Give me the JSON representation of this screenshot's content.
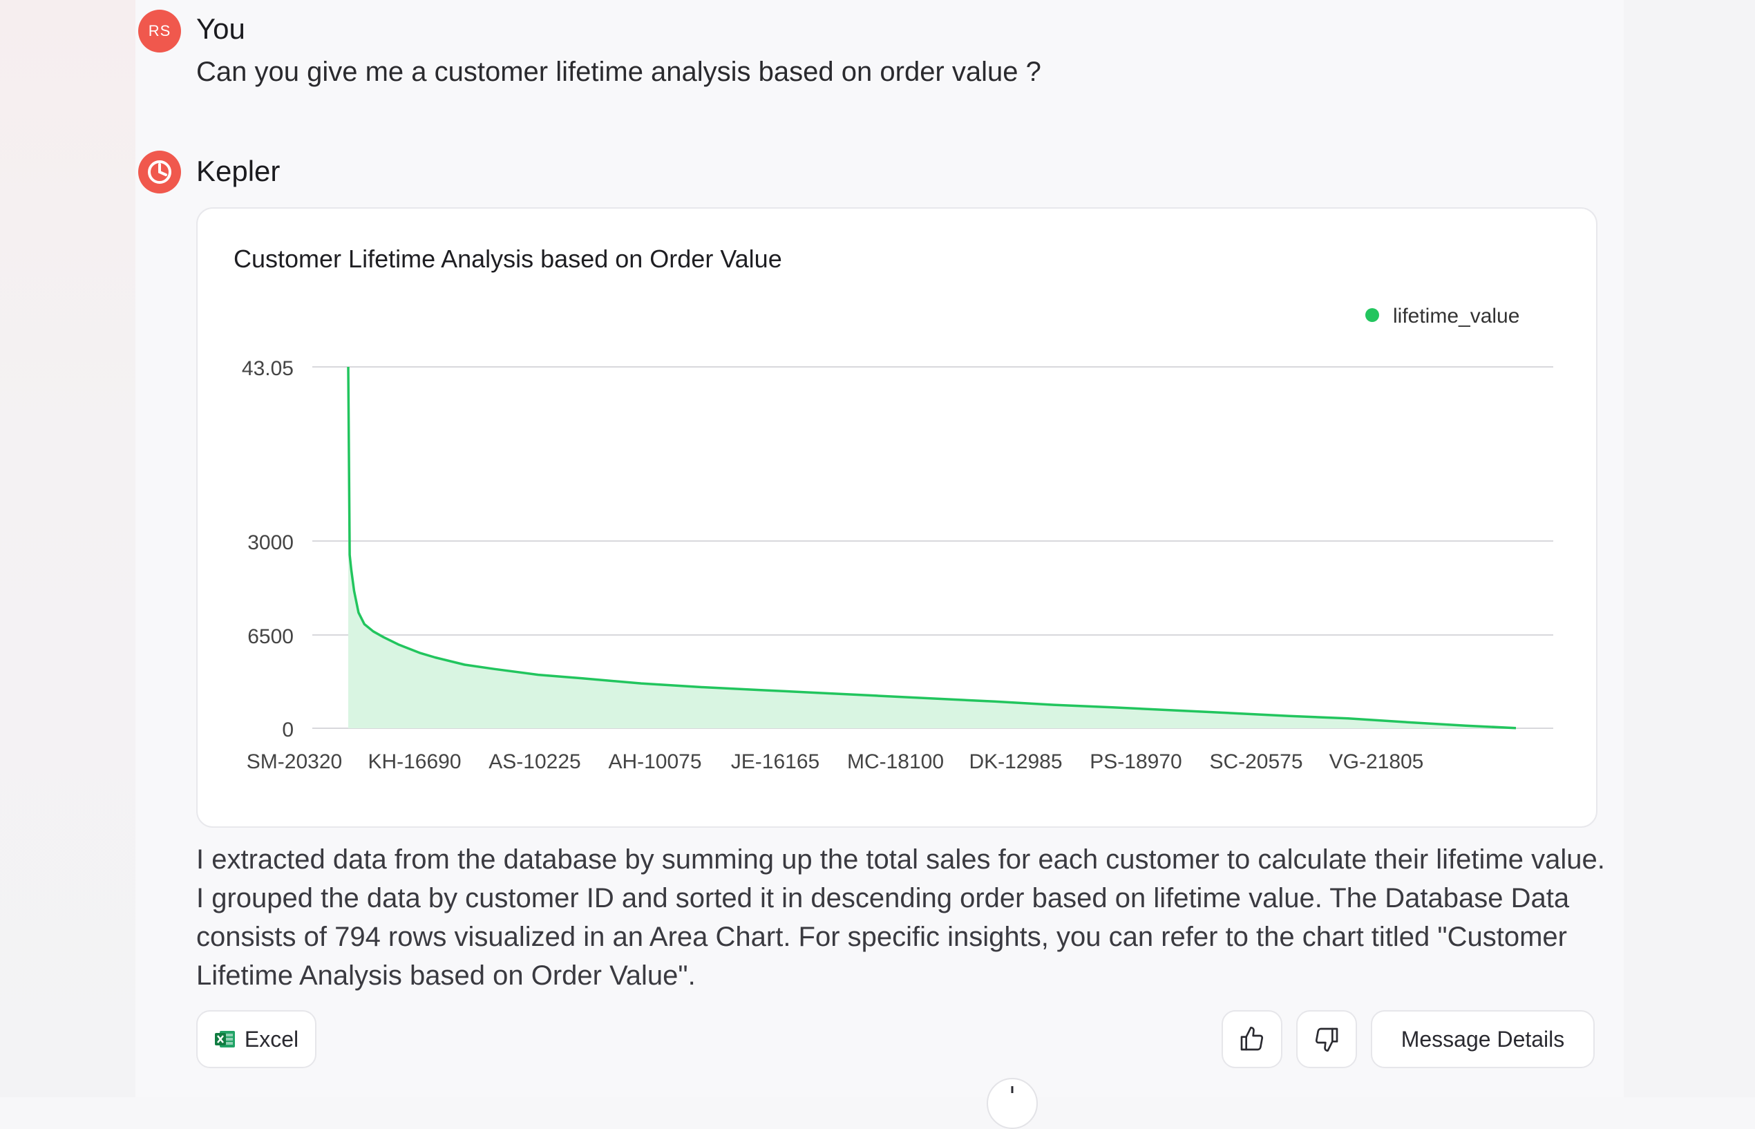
{
  "conversation": {
    "user": {
      "initials": "RS",
      "name": "You",
      "message": "Can you give me a customer lifetime analysis based on order value ?"
    },
    "assistant": {
      "name": "Kepler",
      "answer": "I extracted data from the database by summing up the total sales for each customer to calculate their lifetime value. I grouped the data by customer ID and sorted it in descending order based on lifetime value. The Database Data consists of 794 rows visualized in an Area Chart. For specific insights, you can refer to the chart titled \"Customer Lifetime Analysis based on Order Value\"."
    }
  },
  "actions": {
    "excel_label": "Excel",
    "details_label": "Message Details"
  },
  "colors": {
    "accent": "#f0584d",
    "series": "#22c55e",
    "area_fill": "#d9f5e2"
  },
  "chart_data": {
    "type": "area",
    "title": "Customer Lifetime Analysis based on Order Value",
    "legend": [
      "lifetime_value"
    ],
    "legend_position": "top-right",
    "grid": true,
    "y_tick_labels": [
      "0",
      "6500",
      "3000",
      "43.05"
    ],
    "x_tick_labels": [
      "SM-20320",
      "KH-16690",
      "AS-10225",
      "AH-10075",
      "JE-16165",
      "MC-18100",
      "DK-12985",
      "PS-18970",
      "SC-20575",
      "VG-21805"
    ],
    "series": [
      {
        "name": "lifetime_value",
        "x_rank": [
          1,
          2,
          3,
          5,
          8,
          12,
          18,
          25,
          35,
          50,
          60,
          80,
          100,
          130,
          160,
          200,
          240,
          280,
          320,
          360,
          400,
          440,
          480,
          520,
          560,
          600,
          640,
          680,
          720,
          760,
          794
        ],
        "values": [
          25000,
          12000,
          11000,
          9500,
          8000,
          7200,
          6700,
          6300,
          5800,
          5200,
          4900,
          4400,
          4100,
          3700,
          3450,
          3100,
          2850,
          2650,
          2450,
          2250,
          2050,
          1850,
          1620,
          1450,
          1250,
          1050,
          850,
          680,
          420,
          180,
          10
        ]
      }
    ]
  }
}
